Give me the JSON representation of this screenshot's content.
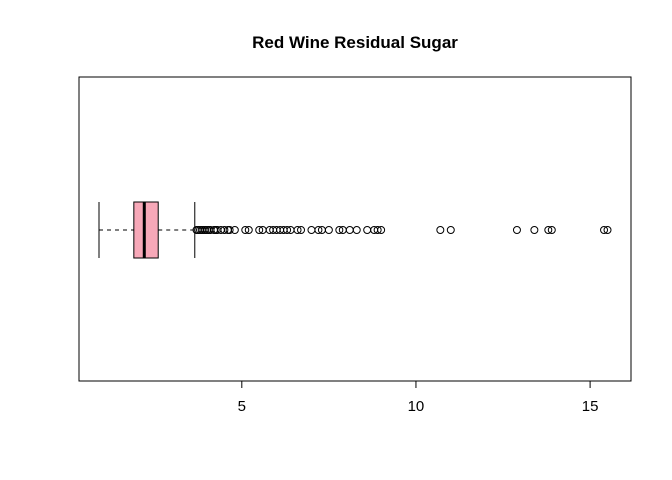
{
  "chart_data": {
    "type": "boxplot",
    "orientation": "horizontal",
    "title": "Red Wine Residual Sugar",
    "xlabel": "",
    "ylabel": "",
    "xlim": [
      0.9,
      15.6
    ],
    "ticks": [
      5,
      10,
      15
    ],
    "tick_labels": [
      "5",
      "10",
      "15"
    ],
    "grid": false,
    "legend": "none",
    "box_color": "#F7A8B8",
    "stats": {
      "whisker_low": 0.9,
      "q1": 1.9,
      "median": 2.2,
      "q3": 2.6,
      "whisker_high": 3.65
    },
    "outliers": [
      3.7,
      3.75,
      3.8,
      3.85,
      3.9,
      3.95,
      4.0,
      4.05,
      4.1,
      4.2,
      4.25,
      4.3,
      4.4,
      4.5,
      4.6,
      4.65,
      4.8,
      5.1,
      5.2,
      5.5,
      5.6,
      5.8,
      5.9,
      6.0,
      6.1,
      6.2,
      6.3,
      6.4,
      6.6,
      6.7,
      7.0,
      7.2,
      7.3,
      7.5,
      7.8,
      7.9,
      8.1,
      8.3,
      8.6,
      8.8,
      8.9,
      9.0,
      10.7,
      11.0,
      12.9,
      13.4,
      13.8,
      13.9,
      15.4,
      15.5
    ]
  }
}
